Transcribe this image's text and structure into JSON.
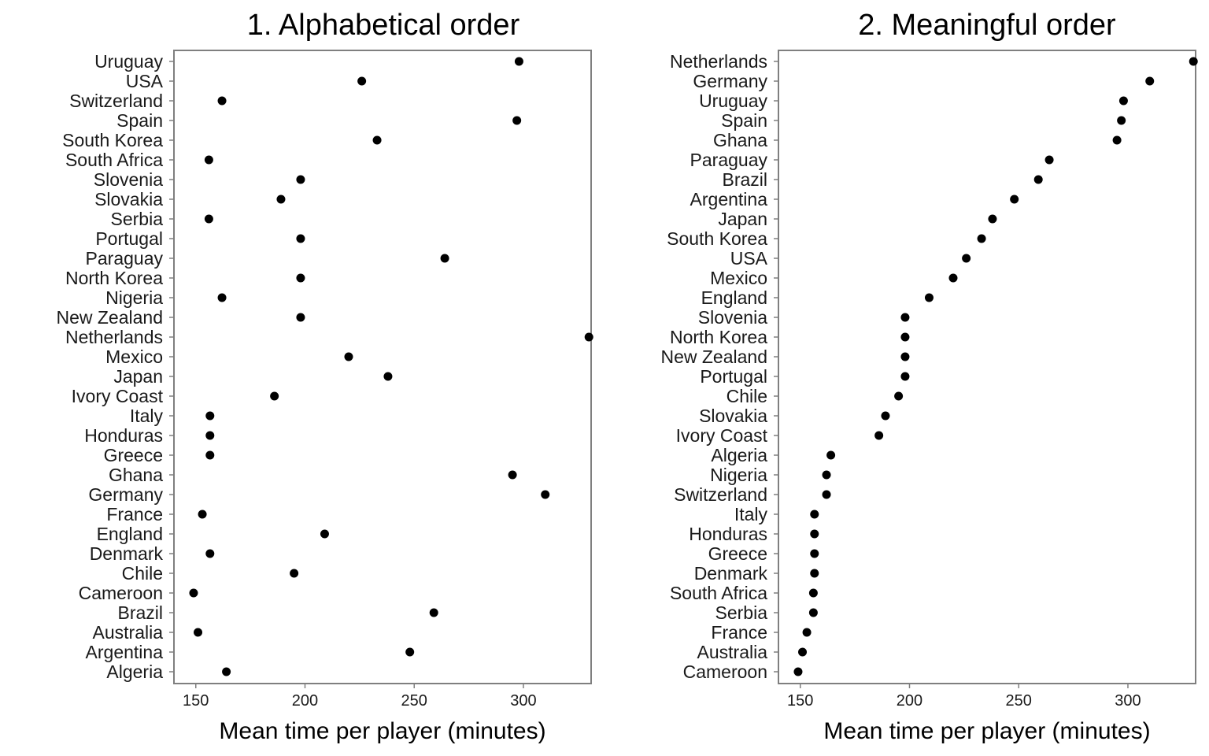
{
  "chart_data": [
    {
      "type": "scatter",
      "title": "1. Alphabetical order",
      "xlabel": "Mean time per player (minutes)",
      "ylabel": "",
      "xlim": [
        140,
        331
      ],
      "xticks": [
        150,
        200,
        250,
        300
      ],
      "grid": false,
      "points": [
        {
          "country": "Uruguay",
          "value": 298
        },
        {
          "country": "USA",
          "value": 226
        },
        {
          "country": "Switzerland",
          "value": 162
        },
        {
          "country": "Spain",
          "value": 297
        },
        {
          "country": "South Korea",
          "value": 233
        },
        {
          "country": "South Africa",
          "value": 156
        },
        {
          "country": "Slovenia",
          "value": 198
        },
        {
          "country": "Slovakia",
          "value": 189
        },
        {
          "country": "Serbia",
          "value": 156
        },
        {
          "country": "Portugal",
          "value": 198
        },
        {
          "country": "Paraguay",
          "value": 264
        },
        {
          "country": "North Korea",
          "value": 198
        },
        {
          "country": "Nigeria",
          "value": 162
        },
        {
          "country": "New Zealand",
          "value": 198
        },
        {
          "country": "Netherlands",
          "value": 330
        },
        {
          "country": "Mexico",
          "value": 220
        },
        {
          "country": "Japan",
          "value": 238
        },
        {
          "country": "Ivory Coast",
          "value": 186
        },
        {
          "country": "Italy",
          "value": 156.5
        },
        {
          "country": "Honduras",
          "value": 156.5
        },
        {
          "country": "Greece",
          "value": 156.5
        },
        {
          "country": "Ghana",
          "value": 295
        },
        {
          "country": "Germany",
          "value": 310
        },
        {
          "country": "France",
          "value": 153
        },
        {
          "country": "England",
          "value": 209
        },
        {
          "country": "Denmark",
          "value": 156.5
        },
        {
          "country": "Chile",
          "value": 195
        },
        {
          "country": "Cameroon",
          "value": 149
        },
        {
          "country": "Brazil",
          "value": 259
        },
        {
          "country": "Australia",
          "value": 151
        },
        {
          "country": "Argentina",
          "value": 248
        },
        {
          "country": "Algeria",
          "value": 164
        }
      ]
    },
    {
      "type": "scatter",
      "title": "2. Meaningful order",
      "xlabel": "Mean time per player (minutes)",
      "ylabel": "",
      "xlim": [
        140,
        331
      ],
      "xticks": [
        150,
        200,
        250,
        300
      ],
      "grid": false,
      "points": [
        {
          "country": "Netherlands",
          "value": 330
        },
        {
          "country": "Germany",
          "value": 310
        },
        {
          "country": "Uruguay",
          "value": 298
        },
        {
          "country": "Spain",
          "value": 297
        },
        {
          "country": "Ghana",
          "value": 295
        },
        {
          "country": "Paraguay",
          "value": 264
        },
        {
          "country": "Brazil",
          "value": 259
        },
        {
          "country": "Argentina",
          "value": 248
        },
        {
          "country": "Japan",
          "value": 238
        },
        {
          "country": "South Korea",
          "value": 233
        },
        {
          "country": "USA",
          "value": 226
        },
        {
          "country": "Mexico",
          "value": 220
        },
        {
          "country": "England",
          "value": 209
        },
        {
          "country": "Slovenia",
          "value": 198
        },
        {
          "country": "North Korea",
          "value": 198
        },
        {
          "country": "New Zealand",
          "value": 198
        },
        {
          "country": "Portugal",
          "value": 198
        },
        {
          "country": "Chile",
          "value": 195
        },
        {
          "country": "Slovakia",
          "value": 189
        },
        {
          "country": "Ivory Coast",
          "value": 186
        },
        {
          "country": "Algeria",
          "value": 164
        },
        {
          "country": "Nigeria",
          "value": 162
        },
        {
          "country": "Switzerland",
          "value": 162
        },
        {
          "country": "Italy",
          "value": 156.5
        },
        {
          "country": "Honduras",
          "value": 156.5
        },
        {
          "country": "Greece",
          "value": 156.5
        },
        {
          "country": "Denmark",
          "value": 156.5
        },
        {
          "country": "South Africa",
          "value": 156
        },
        {
          "country": "Serbia",
          "value": 156
        },
        {
          "country": "France",
          "value": 153
        },
        {
          "country": "Australia",
          "value": 151
        },
        {
          "country": "Cameroon",
          "value": 149
        }
      ]
    }
  ]
}
